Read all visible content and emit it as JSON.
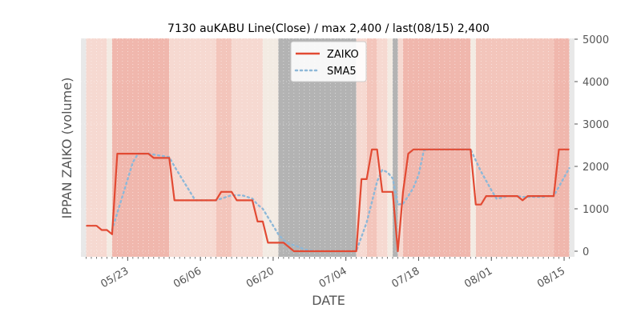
{
  "chart_data": {
    "type": "line",
    "title": "7130 auKABU Line(Close) / max 2,400 / last(08/15) 2,400",
    "xlabel": "DATE",
    "ylabel": "IPPAN ZAIKO (volume)",
    "ylim": [
      0,
      5000
    ],
    "y_ticks": [
      0,
      1000,
      2000,
      3000,
      4000,
      5000
    ],
    "x_ticks": [
      "05/23",
      "06/06",
      "06/20",
      "07/04",
      "07/18",
      "08/01",
      "08/15"
    ],
    "x_tick_positions": [
      "2024-05-23",
      "2024-06-06",
      "2024-06-20",
      "2024-07-04",
      "2024-07-18",
      "2024-08-01",
      "2024-08-15"
    ],
    "grid": true,
    "legend_position": "top-center",
    "series": [
      {
        "name": "ZAIKO",
        "color": "#e24a33",
        "style": "solid",
        "points": [
          [
            "2024-05-15",
            600
          ],
          [
            "2024-05-16",
            600
          ],
          [
            "2024-05-17",
            600
          ],
          [
            "2024-05-18",
            500
          ],
          [
            "2024-05-19",
            500
          ],
          [
            "2024-05-20",
            400
          ],
          [
            "2024-05-21",
            2300
          ],
          [
            "2024-05-22",
            2300
          ],
          [
            "2024-05-23",
            2300
          ],
          [
            "2024-05-24",
            2300
          ],
          [
            "2024-05-25",
            2300
          ],
          [
            "2024-05-26",
            2300
          ],
          [
            "2024-05-27",
            2300
          ],
          [
            "2024-05-28",
            2200
          ],
          [
            "2024-05-29",
            2200
          ],
          [
            "2024-05-30",
            2200
          ],
          [
            "2024-05-31",
            2200
          ],
          [
            "2024-06-01",
            1200
          ],
          [
            "2024-06-02",
            1200
          ],
          [
            "2024-06-03",
            1200
          ],
          [
            "2024-06-04",
            1200
          ],
          [
            "2024-06-05",
            1200
          ],
          [
            "2024-06-06",
            1200
          ],
          [
            "2024-06-07",
            1200
          ],
          [
            "2024-06-08",
            1200
          ],
          [
            "2024-06-09",
            1200
          ],
          [
            "2024-06-10",
            1400
          ],
          [
            "2024-06-11",
            1400
          ],
          [
            "2024-06-12",
            1400
          ],
          [
            "2024-06-13",
            1200
          ],
          [
            "2024-06-14",
            1200
          ],
          [
            "2024-06-15",
            1200
          ],
          [
            "2024-06-16",
            1200
          ],
          [
            "2024-06-17",
            700
          ],
          [
            "2024-06-18",
            700
          ],
          [
            "2024-06-19",
            200
          ],
          [
            "2024-06-20",
            200
          ],
          [
            "2024-06-21",
            200
          ],
          [
            "2024-06-22",
            200
          ],
          [
            "2024-06-23",
            100
          ],
          [
            "2024-06-24",
            0
          ],
          [
            "2024-06-25",
            0
          ],
          [
            "2024-06-26",
            0
          ],
          [
            "2024-06-27",
            0
          ],
          [
            "2024-06-28",
            0
          ],
          [
            "2024-06-29",
            0
          ],
          [
            "2024-06-30",
            0
          ],
          [
            "2024-07-01",
            0
          ],
          [
            "2024-07-02",
            0
          ],
          [
            "2024-07-03",
            0
          ],
          [
            "2024-07-04",
            0
          ],
          [
            "2024-07-05",
            0
          ],
          [
            "2024-07-06",
            0
          ],
          [
            "2024-07-07",
            1700
          ],
          [
            "2024-07-08",
            1700
          ],
          [
            "2024-07-09",
            2400
          ],
          [
            "2024-07-10",
            2400
          ],
          [
            "2024-07-11",
            1400
          ],
          [
            "2024-07-12",
            1400
          ],
          [
            "2024-07-13",
            1400
          ],
          [
            "2024-07-14",
            0
          ],
          [
            "2024-07-15",
            1400
          ],
          [
            "2024-07-16",
            2300
          ],
          [
            "2024-07-17",
            2400
          ],
          [
            "2024-07-18",
            2400
          ],
          [
            "2024-07-19",
            2400
          ],
          [
            "2024-07-20",
            2400
          ],
          [
            "2024-07-21",
            2400
          ],
          [
            "2024-07-22",
            2400
          ],
          [
            "2024-07-23",
            2400
          ],
          [
            "2024-07-24",
            2400
          ],
          [
            "2024-07-25",
            2400
          ],
          [
            "2024-07-26",
            2400
          ],
          [
            "2024-07-27",
            2400
          ],
          [
            "2024-07-28",
            2400
          ],
          [
            "2024-07-29",
            1100
          ],
          [
            "2024-07-30",
            1100
          ],
          [
            "2024-07-31",
            1300
          ],
          [
            "2024-08-01",
            1300
          ],
          [
            "2024-08-02",
            1300
          ],
          [
            "2024-08-03",
            1300
          ],
          [
            "2024-08-04",
            1300
          ],
          [
            "2024-08-05",
            1300
          ],
          [
            "2024-08-06",
            1300
          ],
          [
            "2024-08-07",
            1200
          ],
          [
            "2024-08-08",
            1300
          ],
          [
            "2024-08-09",
            1300
          ],
          [
            "2024-08-10",
            1300
          ],
          [
            "2024-08-11",
            1300
          ],
          [
            "2024-08-12",
            1300
          ],
          [
            "2024-08-13",
            1300
          ],
          [
            "2024-08-14",
            2400
          ],
          [
            "2024-08-15",
            2400
          ],
          [
            "2024-08-16",
            2400
          ]
        ]
      },
      {
        "name": "SMA5",
        "color": "#8eb8d8",
        "style": "dotted",
        "points": [
          [
            "2024-05-20",
            500
          ],
          [
            "2024-05-21",
            900
          ],
          [
            "2024-05-22",
            1300
          ],
          [
            "2024-05-23",
            1700
          ],
          [
            "2024-05-24",
            2100
          ],
          [
            "2024-05-25",
            2300
          ],
          [
            "2024-05-26",
            2300
          ],
          [
            "2024-05-27",
            2300
          ],
          [
            "2024-05-28",
            2280
          ],
          [
            "2024-05-29",
            2260
          ],
          [
            "2024-05-30",
            2240
          ],
          [
            "2024-05-31",
            2220
          ],
          [
            "2024-06-01",
            2000
          ],
          [
            "2024-06-02",
            1800
          ],
          [
            "2024-06-03",
            1600
          ],
          [
            "2024-06-04",
            1400
          ],
          [
            "2024-06-05",
            1200
          ],
          [
            "2024-06-06",
            1200
          ],
          [
            "2024-06-07",
            1200
          ],
          [
            "2024-06-08",
            1200
          ],
          [
            "2024-06-09",
            1200
          ],
          [
            "2024-06-10",
            1240
          ],
          [
            "2024-06-11",
            1280
          ],
          [
            "2024-06-12",
            1320
          ],
          [
            "2024-06-13",
            1320
          ],
          [
            "2024-06-14",
            1320
          ],
          [
            "2024-06-15",
            1280
          ],
          [
            "2024-06-16",
            1240
          ],
          [
            "2024-06-17",
            1100
          ],
          [
            "2024-06-18",
            1000
          ],
          [
            "2024-06-19",
            800
          ],
          [
            "2024-06-20",
            600
          ],
          [
            "2024-06-21",
            400
          ],
          [
            "2024-06-22",
            260
          ],
          [
            "2024-06-23",
            180
          ],
          [
            "2024-06-24",
            140
          ],
          [
            "2024-06-25",
            100
          ],
          [
            "2024-06-26",
            40
          ],
          [
            "2024-06-27",
            20
          ],
          [
            "2024-06-28",
            0
          ],
          [
            "2024-06-29",
            0
          ],
          [
            "2024-06-30",
            0
          ],
          [
            "2024-07-01",
            0
          ],
          [
            "2024-07-02",
            0
          ],
          [
            "2024-07-03",
            0
          ],
          [
            "2024-07-04",
            0
          ],
          [
            "2024-07-05",
            0
          ],
          [
            "2024-07-06",
            0
          ],
          [
            "2024-07-07",
            340
          ],
          [
            "2024-07-08",
            680
          ],
          [
            "2024-07-09",
            1160
          ],
          [
            "2024-07-10",
            1640
          ],
          [
            "2024-07-11",
            1920
          ],
          [
            "2024-07-12",
            1860
          ],
          [
            "2024-07-13",
            1720
          ],
          [
            "2024-07-14",
            1100
          ],
          [
            "2024-07-15",
            1120
          ],
          [
            "2024-07-16",
            1300
          ],
          [
            "2024-07-17",
            1500
          ],
          [
            "2024-07-18",
            1800
          ],
          [
            "2024-07-19",
            2380
          ],
          [
            "2024-07-20",
            2400
          ],
          [
            "2024-07-21",
            2400
          ],
          [
            "2024-07-22",
            2400
          ],
          [
            "2024-07-23",
            2400
          ],
          [
            "2024-07-24",
            2400
          ],
          [
            "2024-07-25",
            2400
          ],
          [
            "2024-07-26",
            2400
          ],
          [
            "2024-07-27",
            2400
          ],
          [
            "2024-07-28",
            2400
          ],
          [
            "2024-07-29",
            2140
          ],
          [
            "2024-07-30",
            1880
          ],
          [
            "2024-07-31",
            1660
          ],
          [
            "2024-08-01",
            1440
          ],
          [
            "2024-08-02",
            1240
          ],
          [
            "2024-08-03",
            1260
          ],
          [
            "2024-08-04",
            1300
          ],
          [
            "2024-08-05",
            1300
          ],
          [
            "2024-08-06",
            1300
          ],
          [
            "2024-08-07",
            1280
          ],
          [
            "2024-08-08",
            1280
          ],
          [
            "2024-08-09",
            1280
          ],
          [
            "2024-08-10",
            1280
          ],
          [
            "2024-08-11",
            1280
          ],
          [
            "2024-08-12",
            1300
          ],
          [
            "2024-08-13",
            1300
          ],
          [
            "2024-08-14",
            1520
          ],
          [
            "2024-08-15",
            1740
          ],
          [
            "2024-08-16",
            1960
          ]
        ]
      }
    ],
    "background_bands": [
      {
        "start": "2024-05-14",
        "end": "2024-05-15",
        "color": "#e8e8e8"
      },
      {
        "start": "2024-05-15",
        "end": "2024-05-19",
        "color": "#f6d9d1"
      },
      {
        "start": "2024-05-19",
        "end": "2024-05-20",
        "color": "#f3ebe3"
      },
      {
        "start": "2024-05-20",
        "end": "2024-05-31",
        "color": "#f0b7ad"
      },
      {
        "start": "2024-05-31",
        "end": "2024-06-09",
        "color": "#f6d9d1"
      },
      {
        "start": "2024-06-09",
        "end": "2024-06-12",
        "color": "#f3c5bb"
      },
      {
        "start": "2024-06-12",
        "end": "2024-06-18",
        "color": "#f6d9d1"
      },
      {
        "start": "2024-06-18",
        "end": "2024-06-21",
        "color": "#f3ebe3"
      },
      {
        "start": "2024-06-21",
        "end": "2024-07-06",
        "color": "#b3b3b3"
      },
      {
        "start": "2024-07-06",
        "end": "2024-07-08",
        "color": "#f6d9d1"
      },
      {
        "start": "2024-07-08",
        "end": "2024-07-10",
        "color": "#f3c5bb"
      },
      {
        "start": "2024-07-10",
        "end": "2024-07-12",
        "color": "#f6d9d1"
      },
      {
        "start": "2024-07-12",
        "end": "2024-07-13",
        "color": "#f3ebe3"
      },
      {
        "start": "2024-07-13",
        "end": "2024-07-14",
        "color": "#b3b3b3"
      },
      {
        "start": "2024-07-14",
        "end": "2024-07-15",
        "color": "#f6d9d1"
      },
      {
        "start": "2024-07-15",
        "end": "2024-07-28",
        "color": "#f0b7ad"
      },
      {
        "start": "2024-07-28",
        "end": "2024-07-29",
        "color": "#f3ebe3"
      },
      {
        "start": "2024-07-29",
        "end": "2024-08-13",
        "color": "#f3c5bb"
      },
      {
        "start": "2024-08-13",
        "end": "2024-08-16",
        "color": "#f0b7ad"
      },
      {
        "start": "2024-08-16",
        "end": "2024-08-17",
        "color": "#e8e8e8"
      }
    ],
    "x_range": [
      "2024-05-14",
      "2024-08-17"
    ]
  }
}
